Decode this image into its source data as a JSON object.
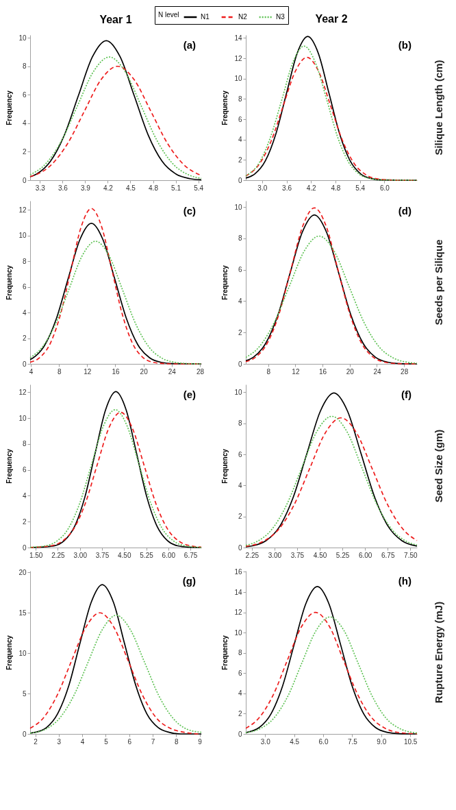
{
  "chart_data": [
    {
      "type": "line",
      "title": "Year 1",
      "ylabel": "Frequency",
      "legend": "top",
      "legend_title": "N level",
      "annotations": [
        "(a)"
      ],
      "xlim": [
        3.17,
        5.44
      ],
      "xticks": [
        3.3,
        3.6,
        3.9,
        4.2,
        4.5,
        4.8,
        5.1,
        5.4
      ],
      "ylim": [
        0,
        10.2
      ],
      "yticks": [
        0,
        2,
        4,
        6,
        8,
        10
      ],
      "series": [
        {
          "name": "N1",
          "color": "#000000",
          "line_style": "solid",
          "x": [
            3.17,
            3.255,
            3.44,
            3.625,
            3.81,
            3.995,
            4.18,
            4.365,
            4.55,
            4.735,
            4.92,
            5.105,
            5.29,
            5.44
          ],
          "values": [
            0.24,
            0.43,
            1.33,
            3.18,
            5.94,
            8.65,
            9.8,
            8.65,
            5.94,
            3.18,
            1.33,
            0.43,
            0.11,
            0.03
          ]
        },
        {
          "name": "N2",
          "color": "#ee1c1c",
          "line_style": "dashed",
          "x": [
            3.17,
            3.23,
            3.45,
            3.67,
            3.89,
            4.11,
            4.33,
            4.55,
            4.77,
            4.99,
            5.21,
            5.44
          ],
          "values": [
            0.25,
            0.35,
            1.08,
            2.6,
            4.85,
            7.06,
            8.0,
            7.06,
            4.85,
            2.6,
            1.08,
            0.33
          ]
        },
        {
          "name": "N3",
          "color": "#5fc255",
          "line_style": "dotted",
          "x": [
            3.17,
            3.38,
            3.59,
            3.8,
            4.01,
            4.22,
            4.43,
            4.64,
            4.85,
            5.06,
            5.27,
            5.44
          ],
          "values": [
            0.38,
            1.17,
            2.81,
            5.25,
            7.63,
            8.65,
            7.63,
            5.25,
            2.81,
            1.17,
            0.38,
            0.13
          ]
        }
      ]
    },
    {
      "type": "line",
      "title": "Year 2",
      "ylabel": "Frequency",
      "annotations": [
        "(b)",
        "Silique Length (cm)"
      ],
      "xlim": [
        2.6,
        6.8
      ],
      "xticks": [
        {
          "value": 3.0,
          "label": "3.0"
        },
        {
          "value": 3.6,
          "label": "3.6"
        },
        {
          "value": 4.2,
          "label": "4.2"
        },
        {
          "value": 4.8,
          "label": "4.8"
        },
        {
          "value": 5.4,
          "label": "5.4"
        },
        {
          "value": 6.0,
          "label": "6.0"
        }
      ],
      "ylim": [
        0,
        14.3
      ],
      "yticks": [
        0,
        2,
        4,
        6,
        8,
        10,
        12,
        14
      ],
      "series": [
        {
          "color": "#000000",
          "line_style": "solid",
          "x": [
            2.6,
            2.82,
            3.08,
            3.34,
            3.6,
            3.86,
            4.12,
            4.38,
            4.64,
            4.9,
            5.16,
            5.42,
            5.68,
            5.94,
            6.8
          ],
          "values": [
            0.21,
            0.62,
            1.91,
            4.59,
            8.58,
            12.49,
            14.15,
            12.49,
            8.58,
            4.59,
            1.91,
            0.62,
            0.16,
            0.03,
            0
          ]
        },
        {
          "color": "#ee1c1c",
          "line_style": "dashed",
          "x": [
            2.6,
            2.94,
            3.23,
            3.52,
            3.81,
            4.1,
            4.39,
            4.68,
            4.97,
            5.26,
            5.55,
            5.84,
            6.13,
            6.42,
            6.8
          ],
          "values": [
            0.41,
            1.64,
            3.93,
            7.34,
            10.68,
            12.1,
            10.68,
            7.34,
            3.93,
            1.64,
            0.53,
            0.13,
            0.03,
            0,
            0
          ]
        },
        {
          "color": "#5fc255",
          "line_style": "dotted",
          "x": [
            2.6,
            2.94,
            3.21,
            3.49,
            3.76,
            4.03,
            4.3,
            4.58,
            4.85,
            5.12,
            5.39,
            5.67,
            5.94,
            6.8
          ],
          "values": [
            0.43,
            1.79,
            4.29,
            8.01,
            11.65,
            13.2,
            11.65,
            8.01,
            4.29,
            1.79,
            0.58,
            0.15,
            0.03,
            0
          ]
        }
      ]
    },
    {
      "type": "line",
      "ylabel": "Frequency",
      "annotations": [
        "(c)"
      ],
      "xlim": [
        3.9,
        28.2
      ],
      "xticks": [
        4,
        8,
        12,
        16,
        20,
        24,
        28
      ],
      "ylim": [
        0,
        12.7
      ],
      "yticks": [
        0,
        2,
        4,
        6,
        8,
        10,
        12
      ],
      "series": [
        {
          "color": "#000000",
          "line_style": "solid",
          "x": [
            3.9,
            4.35,
            6.0,
            7.65,
            9.3,
            10.95,
            12.6,
            14.25,
            15.9,
            17.55,
            19.2,
            20.85,
            22.5,
            24.15,
            28.2
          ],
          "values": [
            0.34,
            0.48,
            1.48,
            3.56,
            6.64,
            9.66,
            10.95,
            9.66,
            6.64,
            3.56,
            1.48,
            0.48,
            0.12,
            0.02,
            0
          ]
        },
        {
          "color": "#ee1c1c",
          "line_style": "dashed",
          "x": [
            3.9,
            5.35,
            6.8,
            8.25,
            9.7,
            11.15,
            12.6,
            14.05,
            15.5,
            16.95,
            18.4,
            19.85,
            21.3,
            22.75,
            24.2,
            28.2
          ],
          "values": [
            0.13,
            0.53,
            1.64,
            3.93,
            7.34,
            10.68,
            12.1,
            10.68,
            7.34,
            3.93,
            1.64,
            0.53,
            0.13,
            0.03,
            0,
            0
          ]
        },
        {
          "color": "#5fc255",
          "line_style": "dotted",
          "x": [
            3.9,
            5.6,
            7.5,
            9.4,
            11.3,
            13.2,
            15.1,
            17.0,
            18.9,
            20.8,
            22.7,
            24.6,
            26.5,
            28.2
          ],
          "values": [
            0.48,
            1.29,
            3.1,
            5.79,
            8.43,
            9.55,
            8.43,
            5.79,
            3.1,
            1.29,
            0.42,
            0.11,
            0.02,
            0
          ]
        }
      ]
    },
    {
      "type": "line",
      "ylabel": "Frequency",
      "annotations": [
        "(d)",
        "Seeds per Silique"
      ],
      "xlim": [
        4.7,
        29.9
      ],
      "xticks": [
        8,
        12,
        16,
        20,
        24,
        28
      ],
      "ylim": [
        0,
        10.4
      ],
      "yticks": [
        0,
        2,
        4,
        6,
        8,
        10
      ],
      "series": [
        {
          "color": "#000000",
          "line_style": "solid",
          "x": [
            4.7,
            5.8,
            7.6,
            9.4,
            11.2,
            13.0,
            14.8,
            16.6,
            18.4,
            20.2,
            22.0,
            23.8,
            25.6,
            27.4,
            29.9
          ],
          "values": [
            0.19,
            0.42,
            1.29,
            3.08,
            5.76,
            8.38,
            9.5,
            8.38,
            5.76,
            3.08,
            1.29,
            0.42,
            0.11,
            0.02,
            0
          ]
        },
        {
          "color": "#ee1c1c",
          "line_style": "dashed",
          "x": [
            4.7,
            6.18,
            7.9,
            9.63,
            11.35,
            13.08,
            14.8,
            16.53,
            18.25,
            19.98,
            21.7,
            23.43,
            25.15,
            26.88,
            29.9
          ],
          "values": [
            0.14,
            0.44,
            1.35,
            3.23,
            6.03,
            8.78,
            9.95,
            8.78,
            6.03,
            3.23,
            1.35,
            0.44,
            0.11,
            0.02,
            0
          ]
        },
        {
          "color": "#5fc255",
          "line_style": "dotted",
          "x": [
            4.7,
            6.7,
            8.9,
            11.1,
            13.3,
            15.5,
            17.7,
            19.9,
            22.1,
            24.3,
            26.5,
            28.7,
            29.9
          ],
          "values": [
            0.41,
            1.1,
            2.65,
            4.94,
            7.19,
            8.15,
            7.19,
            4.94,
            2.65,
            1.1,
            0.36,
            0.09,
            0.04
          ]
        }
      ]
    },
    {
      "type": "line",
      "ylabel": "Frequency",
      "annotations": [
        "(e)"
      ],
      "xlim": [
        1.31,
        7.12
      ],
      "xticks": [
        {
          "value": 1.5,
          "label": "1.50"
        },
        {
          "value": 2.25,
          "label": "2.25"
        },
        {
          "value": 3.0,
          "label": "3.00"
        },
        {
          "value": 3.75,
          "label": "3.75"
        },
        {
          "value": 4.5,
          "label": "4.50"
        },
        {
          "value": 5.25,
          "label": "5.25"
        },
        {
          "value": 6.0,
          "label": "6.00"
        },
        {
          "value": 6.75,
          "label": "6.75"
        }
      ],
      "ylim": [
        0,
        12.6
      ],
      "yticks": [
        0,
        2,
        4,
        6,
        8,
        10,
        12
      ],
      "series": [
        {
          "color": "#000000",
          "line_style": "solid",
          "x": [
            1.31,
            2.12,
            2.47,
            2.82,
            3.17,
            3.52,
            3.87,
            4.22,
            4.57,
            4.92,
            5.27,
            5.62,
            5.97,
            6.32,
            6.67,
            7.12
          ],
          "values": [
            0,
            0.13,
            0.53,
            1.63,
            3.91,
            7.31,
            10.63,
            12.05,
            10.63,
            7.31,
            3.91,
            1.63,
            0.53,
            0.13,
            0.03,
            0
          ]
        },
        {
          "color": "#ee1c1c",
          "line_style": "dashed",
          "x": [
            1.31,
            1.98,
            2.38,
            2.78,
            3.18,
            3.58,
            3.98,
            4.38,
            4.78,
            5.18,
            5.58,
            5.98,
            6.38,
            6.78,
            7.12
          ],
          "values": [
            0.01,
            0.12,
            0.46,
            1.41,
            3.39,
            6.34,
            9.22,
            10.45,
            9.22,
            6.34,
            3.39,
            1.41,
            0.46,
            0.12,
            0.03
          ]
        },
        {
          "color": "#5fc255",
          "line_style": "dotted",
          "x": [
            1.31,
            1.8,
            2.2,
            2.6,
            3.0,
            3.4,
            3.8,
            4.2,
            4.6,
            5.0,
            5.4,
            5.8,
            6.2,
            6.6,
            7.12
          ],
          "values": [
            0.02,
            0.12,
            0.47,
            1.44,
            3.46,
            6.46,
            9.4,
            10.65,
            9.4,
            6.46,
            3.46,
            1.44,
            0.47,
            0.12,
            0.01
          ]
        }
      ]
    },
    {
      "type": "line",
      "ylabel": "Frequency",
      "annotations": [
        "(f)",
        "Seed Size (gm)"
      ],
      "xlim": [
        2.05,
        7.72
      ],
      "xticks": [
        {
          "value": 2.25,
          "label": "2.25"
        },
        {
          "value": 3.0,
          "label": "3.00"
        },
        {
          "value": 3.75,
          "label": "3.75"
        },
        {
          "value": 4.5,
          "label": "4.50"
        },
        {
          "value": 5.25,
          "label": "5.25"
        },
        {
          "value": 6.0,
          "label": "6.00"
        },
        {
          "value": 6.75,
          "label": "6.75"
        },
        {
          "value": 7.5,
          "label": "7.50"
        }
      ],
      "ylim": [
        0,
        10.5
      ],
      "yticks": [
        0,
        2,
        4,
        6,
        8,
        10
      ],
      "series": [
        {
          "color": "#000000",
          "line_style": "solid",
          "x": [
            2.05,
            2.27,
            2.72,
            3.17,
            3.62,
            4.07,
            4.52,
            4.97,
            5.42,
            5.87,
            6.32,
            6.77,
            7.22,
            7.72
          ],
          "values": [
            0.05,
            0.11,
            0.44,
            1.35,
            3.23,
            6.03,
            8.78,
            9.95,
            8.78,
            6.03,
            3.23,
            1.35,
            0.44,
            0.09
          ]
        },
        {
          "color": "#ee1c1c",
          "line_style": "dashed",
          "x": [
            2.05,
            2.6,
            3.12,
            3.64,
            4.16,
            4.68,
            5.2,
            5.72,
            6.24,
            6.76,
            7.28,
            7.72
          ],
          "values": [
            0.08,
            0.37,
            1.13,
            2.71,
            5.06,
            7.37,
            8.35,
            7.37,
            5.06,
            2.71,
            1.13,
            0.45
          ]
        },
        {
          "color": "#5fc255",
          "line_style": "dotted",
          "x": [
            2.05,
            2.4,
            2.9,
            3.4,
            3.9,
            4.4,
            4.9,
            5.4,
            5.9,
            6.4,
            6.9,
            7.4,
            7.72
          ],
          "values": [
            0.14,
            0.37,
            1.14,
            2.74,
            5.12,
            7.46,
            8.45,
            7.46,
            5.12,
            2.74,
            1.14,
            0.37,
            0.16
          ]
        }
      ]
    },
    {
      "type": "line",
      "ylabel": "Frequency",
      "annotations": [
        "(g)"
      ],
      "xlim": [
        1.78,
        9.07
      ],
      "xticks": [
        2,
        3,
        4,
        5,
        6,
        7,
        8,
        9
      ],
      "ylim": [
        0,
        20.2
      ],
      "yticks": [
        0,
        5,
        10,
        15,
        20
      ],
      "series": [
        {
          "color": "#000000",
          "line_style": "solid",
          "x": [
            1.78,
            2.0,
            2.48,
            2.95,
            3.43,
            3.9,
            4.38,
            4.85,
            5.33,
            5.8,
            6.28,
            6.75,
            7.23,
            7.7,
            8.18,
            9.07
          ],
          "values": [
            0.1,
            0.2,
            0.8,
            2.5,
            6.0,
            11.2,
            16.3,
            18.5,
            16.3,
            11.2,
            6.0,
            2.5,
            0.8,
            0.2,
            0.0,
            0
          ]
        },
        {
          "color": "#ee1c1c",
          "line_style": "dashed",
          "x": [
            1.78,
            2.35,
            2.95,
            3.55,
            4.15,
            4.75,
            5.35,
            5.95,
            6.55,
            7.15,
            7.75,
            8.35,
            8.95
          ],
          "values": [
            0.7,
            2.0,
            4.9,
            9.1,
            13.2,
            15.0,
            13.2,
            9.1,
            4.9,
            2.0,
            0.7,
            0.2,
            0.0
          ]
        },
        {
          "color": "#5fc255",
          "line_style": "dotted",
          "x": [
            1.78,
            2.45,
            3.05,
            3.65,
            4.25,
            4.85,
            5.45,
            6.05,
            6.65,
            7.25,
            7.85,
            8.45,
            9.07
          ],
          "values": [
            0.1,
            0.6,
            2.0,
            4.8,
            8.9,
            12.9,
            14.7,
            12.9,
            8.9,
            4.8,
            2.0,
            0.6,
            0.2
          ]
        }
      ]
    },
    {
      "type": "line",
      "ylabel": "Frequency",
      "annotations": [
        "(h)",
        "Rupture Energy (mJ)"
      ],
      "xlim": [
        2.0,
        10.85
      ],
      "xticks": [
        {
          "value": 3.0,
          "label": "3.0"
        },
        {
          "value": 4.5,
          "label": "4.5"
        },
        {
          "value": 6.0,
          "label": "6.0"
        },
        {
          "value": 7.5,
          "label": "7.5"
        },
        {
          "value": 9.0,
          "label": "9.0"
        },
        {
          "value": 10.5,
          "label": "10.5"
        }
      ],
      "ylim": [
        0,
        16.1
      ],
      "yticks": [
        0,
        2,
        4,
        6,
        8,
        10,
        12,
        14,
        16
      ],
      "series": [
        {
          "color": "#000000",
          "line_style": "solid",
          "x": [
            2.0,
            2.7,
            3.3,
            3.9,
            4.5,
            5.1,
            5.7,
            6.3,
            6.9,
            7.5,
            8.1,
            8.7,
            9.3,
            9.9,
            10.85
          ],
          "values": [
            0.13,
            0.64,
            1.97,
            4.72,
            8.82,
            12.84,
            14.55,
            12.84,
            8.82,
            4.72,
            1.97,
            0.64,
            0.16,
            0.03,
            0
          ]
        },
        {
          "color": "#ee1c1c",
          "line_style": "dashed",
          "x": [
            2.0,
            2.7,
            3.43,
            4.15,
            4.88,
            5.6,
            6.33,
            7.05,
            7.78,
            8.5,
            9.23,
            9.95,
            10.68,
            10.85
          ],
          "values": [
            0.55,
            1.62,
            3.9,
            7.28,
            10.59,
            12.0,
            10.59,
            7.28,
            3.9,
            1.62,
            0.53,
            0.13,
            0.03,
            0.02
          ]
        },
        {
          "color": "#5fc255",
          "line_style": "dotted",
          "x": [
            2.0,
            2.73,
            3.45,
            4.18,
            4.9,
            5.63,
            6.35,
            7.08,
            7.8,
            8.53,
            9.25,
            9.98,
            10.85
          ],
          "values": [
            0.13,
            0.51,
            1.56,
            3.75,
            7.01,
            10.19,
            11.55,
            10.19,
            7.01,
            3.75,
            1.56,
            0.51,
            0.09
          ]
        }
      ]
    }
  ]
}
